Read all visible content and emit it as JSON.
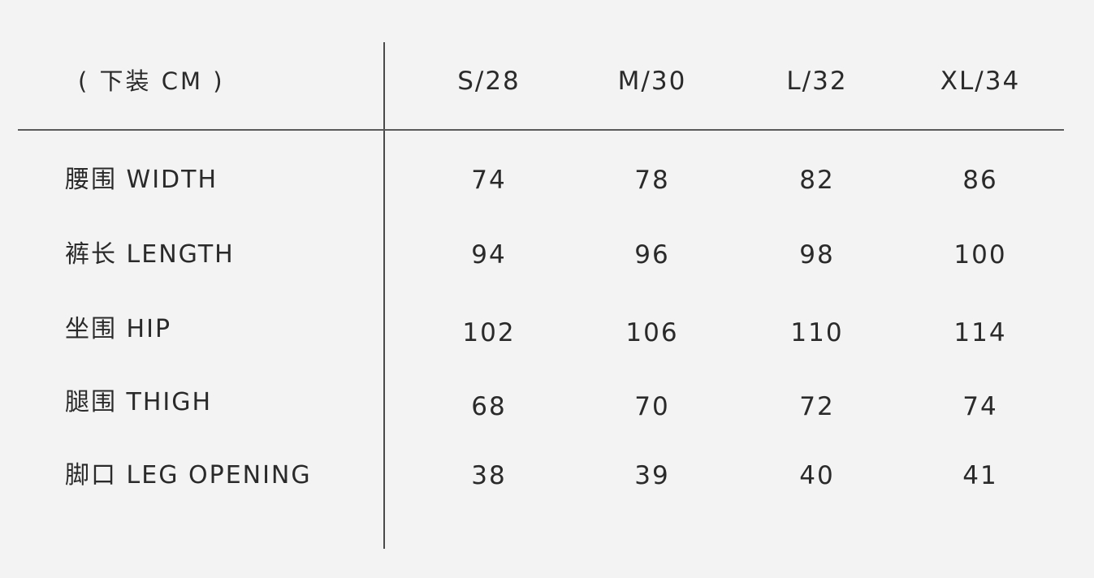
{
  "table": {
    "corner_label": "( 下装 CM )",
    "sizes": [
      "S/28",
      "M/30",
      "L/32",
      "XL/34"
    ],
    "rows": [
      {
        "label": "腰围 WIDTH",
        "values": [
          "74",
          "78",
          "82",
          "86"
        ]
      },
      {
        "label": "裤长 LENGTH",
        "values": [
          "94",
          "96",
          "98",
          "100"
        ]
      },
      {
        "label": "坐围 HIP",
        "values": [
          "102",
          "106",
          "110",
          "114"
        ]
      },
      {
        "label": "腿围 THIGH",
        "values": [
          "68",
          "70",
          "72",
          "74"
        ]
      },
      {
        "label": "脚口 LEG OPENING",
        "values": [
          "38",
          "39",
          "40",
          "41"
        ]
      }
    ]
  },
  "colors": {
    "background": "#f3f3f3",
    "text": "#2a2a2a",
    "rule": "#4a4a4a"
  }
}
